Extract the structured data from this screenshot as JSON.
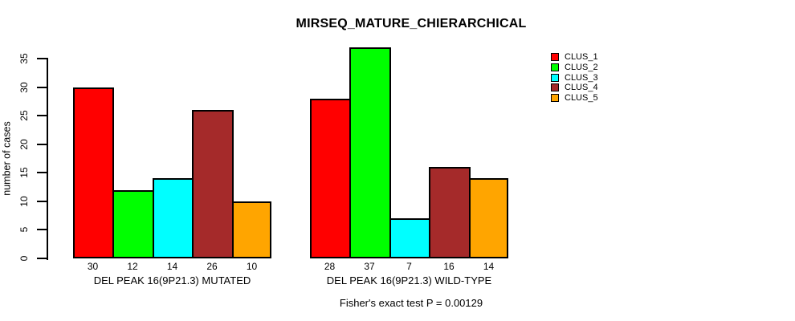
{
  "figure": {
    "title": "MIRSEQ_MATURE_CHIERARCHICAL",
    "annotation": "Fisher's exact test P = 0.00129"
  },
  "chart_data": {
    "type": "bar",
    "title": "MIRSEQ_MATURE_CHIERARCHICAL",
    "xlabel": "",
    "ylabel": "number of cases",
    "ylim": [
      0,
      35
    ],
    "yticks": [
      0,
      5,
      10,
      15,
      20,
      25,
      30,
      35
    ],
    "grid": false,
    "legend_position": "right",
    "categories": [
      "DEL PEAK 16(9P21.3) MUTATED",
      "DEL PEAK 16(9P21.3) WILD-TYPE"
    ],
    "series": [
      {
        "name": "CLUS_1",
        "color": "#FF0000",
        "values": [
          30,
          28
        ]
      },
      {
        "name": "CLUS_2",
        "color": "#00FF00",
        "values": [
          12,
          37
        ]
      },
      {
        "name": "CLUS_3",
        "color": "#00FFFF",
        "values": [
          14,
          7
        ]
      },
      {
        "name": "CLUS_4",
        "color": "#A52A2A",
        "values": [
          26,
          16
        ]
      },
      {
        "name": "CLUS_5",
        "color": "#FFA500",
        "values": [
          10,
          14
        ]
      }
    ],
    "bar_value_labels": [
      [
        30,
        12,
        14,
        26,
        10
      ],
      [
        28,
        37,
        7,
        16,
        14
      ]
    ],
    "annotation": "Fisher's exact test P = 0.00129"
  }
}
